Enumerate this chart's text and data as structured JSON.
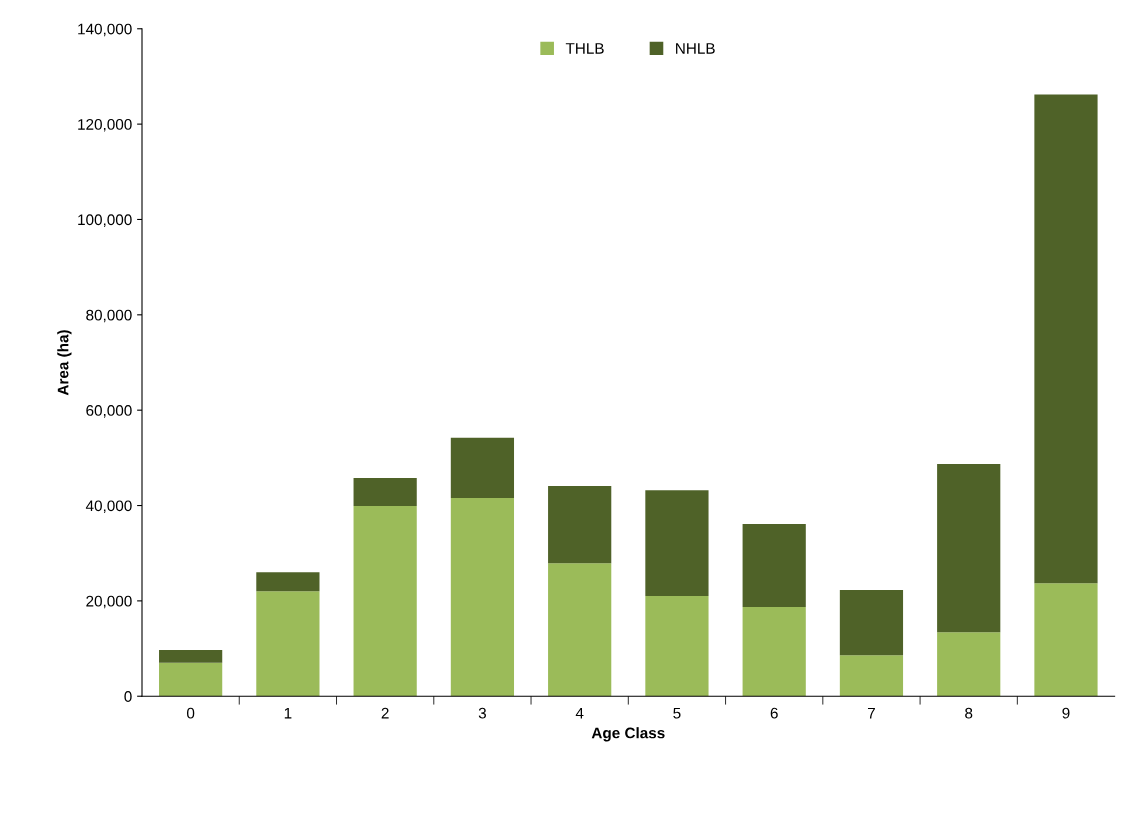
{
  "chart_data": {
    "type": "bar",
    "stacked": true,
    "xlabel": "Age Class",
    "ylabel": "Area (ha)",
    "categories": [
      "0",
      "1",
      "2",
      "3",
      "4",
      "5",
      "6",
      "7",
      "8",
      "9"
    ],
    "series": [
      {
        "name": "THLB",
        "color": "#9bbb59",
        "values": [
          7000,
          22000,
          39900,
          41600,
          27900,
          21000,
          18700,
          8600,
          13400,
          23700
        ]
      },
      {
        "name": "NHLB",
        "color": "#4f6228",
        "values": [
          2700,
          4000,
          5900,
          12600,
          16200,
          22200,
          17400,
          13700,
          35300,
          102500
        ]
      }
    ],
    "ylim": [
      0,
      140000
    ],
    "yticks": [
      {
        "value": 0,
        "label": "0"
      },
      {
        "value": 20000,
        "label": "20,000"
      },
      {
        "value": 40000,
        "label": "40,000"
      },
      {
        "value": 60000,
        "label": "60,000"
      },
      {
        "value": 80000,
        "label": "80,000"
      },
      {
        "value": 100000,
        "label": "100,000"
      },
      {
        "value": 120000,
        "label": "120,000"
      },
      {
        "value": 140000,
        "label": "140,000"
      }
    ],
    "grid": false,
    "legend": "top"
  }
}
